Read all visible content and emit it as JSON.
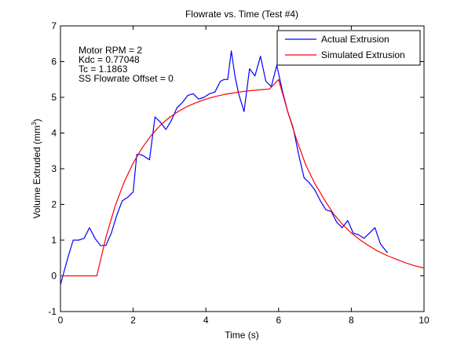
{
  "chart_data": {
    "type": "line",
    "title": "Flowrate vs. Time (Test #4)",
    "xlabel": "Time (s)",
    "ylabel_main": "Volume Extruded (mm",
    "ylabel_sup": "3",
    "ylabel_close": ")",
    "xlim": [
      0,
      10
    ],
    "ylim": [
      -1,
      7
    ],
    "xticks": [
      "0",
      "2",
      "4",
      "6",
      "8",
      "10"
    ],
    "yticks": [
      "-1",
      "0",
      "1",
      "2",
      "3",
      "4",
      "5",
      "6",
      "7"
    ],
    "grid": false,
    "legend_position": "top-right",
    "annotations": [
      "Motor RPM = 2",
      "Kdc = 0.77048",
      "Tc = 1.1863",
      "SS Flowrate Offset = 0"
    ],
    "series": [
      {
        "name": "Actual Extrusion",
        "color": "#0000ff",
        "x": [
          0,
          0.2,
          0.35,
          0.5,
          0.65,
          0.8,
          0.95,
          1.1,
          1.25,
          1.4,
          1.55,
          1.7,
          1.85,
          2.0,
          2.1,
          2.2,
          2.3,
          2.45,
          2.6,
          2.75,
          2.9,
          3.05,
          3.2,
          3.35,
          3.5,
          3.65,
          3.8,
          3.95,
          4.1,
          4.25,
          4.4,
          4.5,
          4.6,
          4.7,
          4.8,
          4.9,
          5.05,
          5.2,
          5.35,
          5.5,
          5.65,
          5.8,
          5.95,
          6.1,
          6.25,
          6.4,
          6.55,
          6.7,
          6.85,
          7.0,
          7.15,
          7.3,
          7.45,
          7.6,
          7.75,
          7.9,
          8.05,
          8.2,
          8.35,
          8.5,
          8.65,
          8.8,
          8.95,
          9.0
        ],
        "y": [
          -0.25,
          0.5,
          1.0,
          1.0,
          1.05,
          1.35,
          1.05,
          0.85,
          0.85,
          1.2,
          1.7,
          2.1,
          2.2,
          2.35,
          3.4,
          3.4,
          3.35,
          3.25,
          4.45,
          4.3,
          4.1,
          4.35,
          4.7,
          4.85,
          5.05,
          5.1,
          4.95,
          5.0,
          5.1,
          5.15,
          5.45,
          5.5,
          5.5,
          6.3,
          5.6,
          5.1,
          4.6,
          5.8,
          5.6,
          6.15,
          5.45,
          5.3,
          5.9,
          5.2,
          4.6,
          4.15,
          3.4,
          2.75,
          2.6,
          2.4,
          2.1,
          1.85,
          1.8,
          1.5,
          1.35,
          1.55,
          1.2,
          1.15,
          1.05,
          1.2,
          1.35,
          0.9,
          0.7,
          0.65
        ]
      },
      {
        "name": "Simulated Extrusion",
        "color": "#ff0000",
        "x": [
          0,
          0.25,
          0.5,
          0.75,
          1.0,
          1.25,
          1.5,
          1.75,
          2.0,
          2.25,
          2.5,
          2.75,
          3.0,
          3.25,
          3.5,
          3.75,
          4.0,
          4.25,
          4.5,
          4.75,
          5.0,
          5.25,
          5.5,
          5.75,
          6.0,
          6.25,
          6.5,
          6.75,
          7.0,
          7.25,
          7.5,
          7.75,
          8.0,
          8.25,
          8.5,
          8.75,
          9.0,
          9.25,
          9.5,
          9.75,
          10.0
        ],
        "y": [
          0,
          0,
          0,
          0,
          0,
          1.08,
          1.94,
          2.62,
          3.16,
          3.59,
          3.94,
          4.22,
          4.44,
          4.61,
          4.75,
          4.86,
          4.95,
          5.02,
          5.08,
          5.12,
          5.16,
          5.19,
          5.21,
          5.23,
          5.5,
          4.6,
          3.8,
          3.1,
          2.58,
          2.15,
          1.75,
          1.45,
          1.2,
          1.0,
          0.83,
          0.68,
          0.56,
          0.46,
          0.36,
          0.28,
          0.22
        ]
      }
    ]
  }
}
